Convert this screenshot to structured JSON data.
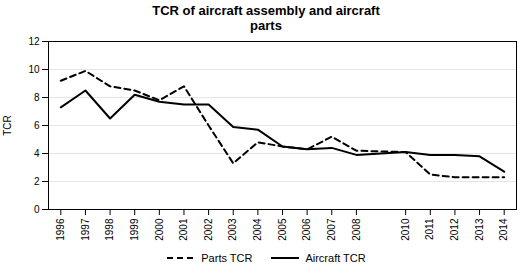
{
  "chart_data": {
    "type": "line",
    "title": "TCR of aircraft assembly  and aircraft\nparts",
    "ylabel": "TCR",
    "x": [
      1996,
      1997,
      1998,
      1999,
      2000,
      2001,
      2002,
      2003,
      2004,
      2005,
      2006,
      2007,
      2008,
      2010,
      2011,
      2012,
      2013,
      2014
    ],
    "series": [
      {
        "name": "Parts TCR",
        "color": "#000000",
        "line_style": "dashed",
        "values": [
          9.2,
          9.9,
          8.8,
          8.5,
          7.8,
          8.8,
          6.0,
          3.3,
          4.8,
          4.5,
          4.3,
          5.2,
          4.2,
          4.1,
          2.5,
          2.3,
          2.3,
          2.3
        ]
      },
      {
        "name": "Aircraft TCR",
        "color": "#000000",
        "line_style": "solid",
        "values": [
          7.3,
          8.5,
          6.5,
          8.2,
          7.7,
          7.5,
          7.5,
          5.9,
          5.7,
          4.5,
          4.3,
          4.4,
          3.9,
          4.1,
          3.9,
          3.9,
          3.8,
          2.7
        ]
      }
    ],
    "xlim": [
      1995.5,
      2014.5
    ],
    "xticks": [
      1996,
      1997,
      1998,
      1999,
      2000,
      2001,
      2002,
      2003,
      2004,
      2005,
      2006,
      2007,
      2008,
      2010,
      2011,
      2012,
      2013,
      2014
    ],
    "ylim": [
      0,
      12
    ],
    "yticks": [
      0,
      2,
      4,
      6,
      8,
      10,
      12
    ],
    "grid": "y",
    "legend": "bottom"
  }
}
